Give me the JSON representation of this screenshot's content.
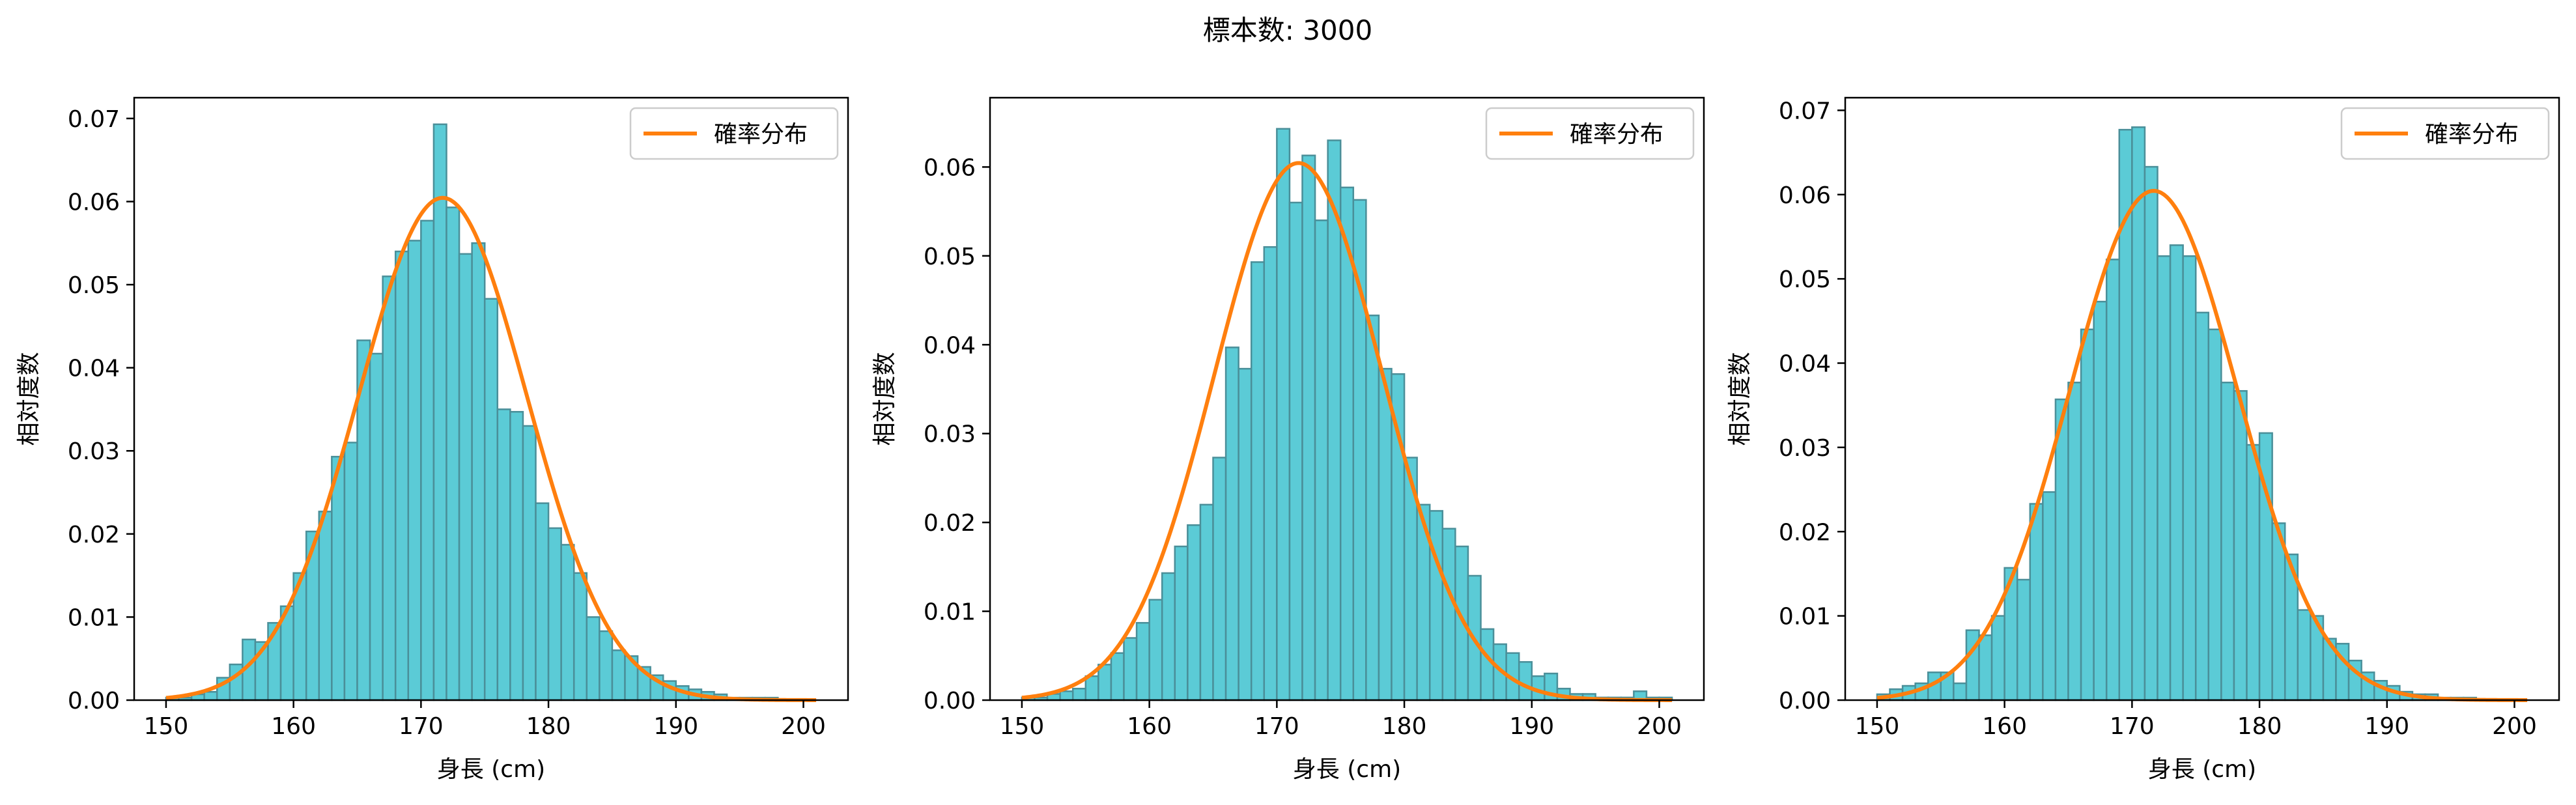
{
  "figure_title": "標本数: 3000",
  "colors": {
    "bars": "#5bcbd6",
    "bar_edge": "#4a8f99",
    "curve": "#ff7f0e"
  },
  "chart_data": [
    {
      "type": "bar",
      "xlabel": "身長 (cm)",
      "ylabel": "相対度数",
      "xlim": [
        147.5,
        203.5
      ],
      "ylim": [
        0,
        0.0725
      ],
      "xticks": [
        150,
        160,
        170,
        180,
        190,
        200
      ],
      "yticks": [
        0.0,
        0.01,
        0.02,
        0.03,
        0.04,
        0.05,
        0.06,
        0.07
      ],
      "legend": {
        "label": "確率分布",
        "placement": "top-right"
      },
      "curve": {
        "type": "normal_pdf",
        "mean": 171.7,
        "sd": 6.6,
        "x_range": [
          150,
          201
        ]
      },
      "bins": {
        "start": 150.5,
        "width": 1.0
      },
      "values": [
        0.0003,
        0.0003,
        0.0007,
        0.001,
        0.0027,
        0.0043,
        0.0073,
        0.007,
        0.0093,
        0.0113,
        0.0153,
        0.0203,
        0.0227,
        0.0293,
        0.031,
        0.0433,
        0.0417,
        0.051,
        0.054,
        0.0553,
        0.0577,
        0.0693,
        0.0593,
        0.0537,
        0.055,
        0.0483,
        0.035,
        0.0347,
        0.033,
        0.0237,
        0.0207,
        0.0187,
        0.0153,
        0.01,
        0.0083,
        0.006,
        0.0053,
        0.004,
        0.003,
        0.0023,
        0.0017,
        0.0013,
        0.001,
        0.0007,
        0.0003,
        0.0003,
        0.0003,
        0.0003
      ]
    },
    {
      "type": "bar",
      "xlabel": "身長 (cm)",
      "ylabel": "相対度数",
      "xlim": [
        147.5,
        203.5
      ],
      "ylim": [
        0,
        0.0678
      ],
      "xticks": [
        150,
        160,
        170,
        180,
        190,
        200
      ],
      "yticks": [
        0.0,
        0.01,
        0.02,
        0.03,
        0.04,
        0.05,
        0.06
      ],
      "legend": {
        "label": "確率分布",
        "placement": "top-right"
      },
      "curve": {
        "type": "normal_pdf",
        "mean": 171.7,
        "sd": 6.6,
        "x_range": [
          150,
          201
        ]
      },
      "bins": {
        "start": 150.5,
        "width": 1.0
      },
      "values": [
        0.0003,
        0.0003,
        0.0007,
        0.001,
        0.0013,
        0.0027,
        0.004,
        0.0053,
        0.007,
        0.0087,
        0.0113,
        0.0143,
        0.0173,
        0.0197,
        0.022,
        0.0273,
        0.0397,
        0.0373,
        0.0493,
        0.051,
        0.0643,
        0.056,
        0.0613,
        0.054,
        0.063,
        0.0577,
        0.0563,
        0.0433,
        0.0373,
        0.0367,
        0.0273,
        0.022,
        0.0213,
        0.0193,
        0.0173,
        0.014,
        0.008,
        0.0063,
        0.0053,
        0.0043,
        0.0027,
        0.003,
        0.0013,
        0.0007,
        0.0007,
        0.0003,
        0.0003,
        0.0003,
        0.001,
        0.0003,
        0.0003
      ]
    },
    {
      "type": "bar",
      "xlabel": "身長 (cm)",
      "ylabel": "相対度数",
      "xlim": [
        147.5,
        203.5
      ],
      "ylim": [
        0,
        0.0715
      ],
      "xticks": [
        150,
        160,
        170,
        180,
        190,
        200
      ],
      "yticks": [
        0.0,
        0.01,
        0.02,
        0.03,
        0.04,
        0.05,
        0.06,
        0.07
      ],
      "legend": {
        "label": "確率分布",
        "placement": "top-right"
      },
      "curve": {
        "type": "normal_pdf",
        "mean": 171.7,
        "sd": 6.6,
        "x_range": [
          150,
          201
        ]
      },
      "bins": {
        "start": 150.5,
        "width": 1.0
      },
      "values": [
        0.0007,
        0.0013,
        0.0017,
        0.002,
        0.0033,
        0.0033,
        0.002,
        0.0083,
        0.0077,
        0.01,
        0.0157,
        0.0143,
        0.0233,
        0.0247,
        0.0357,
        0.0377,
        0.044,
        0.0473,
        0.0523,
        0.0677,
        0.068,
        0.0633,
        0.0527,
        0.054,
        0.0527,
        0.046,
        0.044,
        0.0377,
        0.0367,
        0.0303,
        0.0317,
        0.021,
        0.0173,
        0.0107,
        0.01,
        0.0073,
        0.0067,
        0.0047,
        0.0033,
        0.0023,
        0.0017,
        0.001,
        0.0007,
        0.0007,
        0.0003,
        0.0003,
        0.0003
      ]
    }
  ]
}
